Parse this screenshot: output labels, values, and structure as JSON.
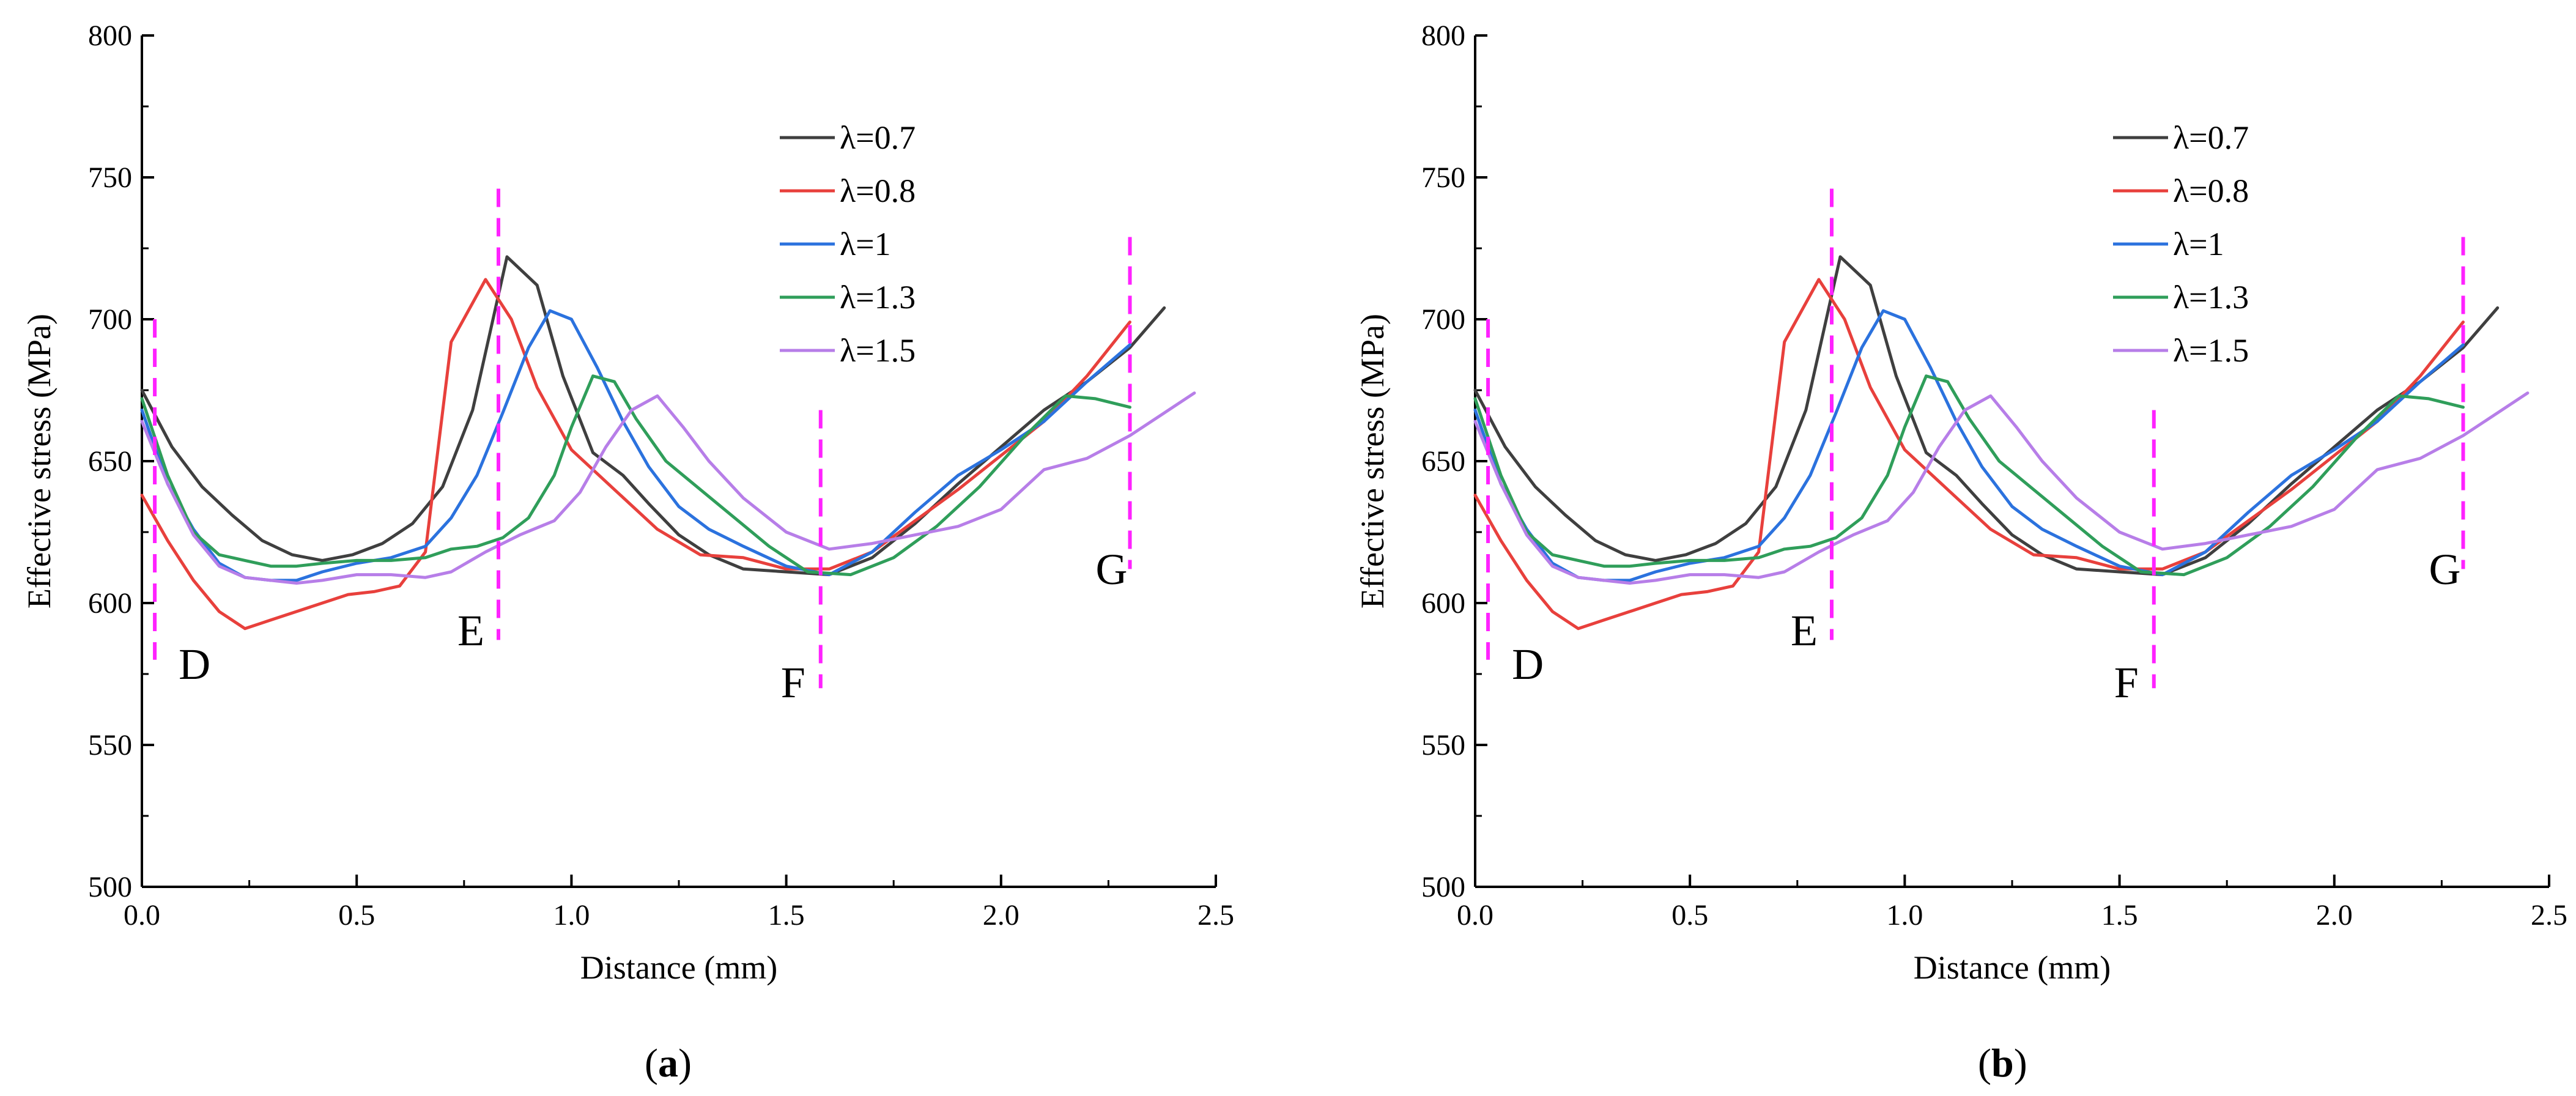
{
  "colors": {
    "lambda_0_7": "#3f3f3f",
    "lambda_0_8": "#e8403c",
    "lambda_1": "#2b72de",
    "lambda_1_3": "#2f9e5a",
    "lambda_1_5": "#b77ee8",
    "marker": "#ff22ff"
  },
  "chart_data": [
    {
      "panel": "(a)",
      "panel_letter": "a",
      "type": "line",
      "xlabel": "Distance (mm)",
      "ylabel": "Effective stress (MPa)",
      "xlim": [
        0.0,
        2.5
      ],
      "ylim": [
        500,
        800
      ],
      "xticks": [
        "0.0",
        "0.5",
        "1.0",
        "1.5",
        "2.0",
        "2.5"
      ],
      "yticks": [
        "500",
        "550",
        "600",
        "650",
        "700",
        "750",
        "800"
      ],
      "legend": "top-right",
      "series": [
        {
          "name": "λ=0.7",
          "color_key": "lambda_0_7",
          "x": [
            0,
            0.07,
            0.14,
            0.21,
            0.28,
            0.35,
            0.42,
            0.49,
            0.56,
            0.63,
            0.7,
            0.77,
            0.85,
            0.92,
            0.98,
            1.05,
            1.12,
            1.18,
            1.25,
            1.32,
            1.4,
            1.5,
            1.6,
            1.7,
            1.8,
            1.9,
            2.0,
            2.1,
            2.2,
            2.3,
            2.38
          ],
          "y": [
            675,
            655,
            641,
            631,
            622,
            617,
            615,
            617,
            621,
            628,
            641,
            668,
            722,
            712,
            680,
            653,
            645,
            635,
            624,
            617,
            612,
            611,
            610,
            616,
            628,
            642,
            655,
            668,
            678,
            690,
            704
          ]
        },
        {
          "name": "λ=0.8",
          "color_key": "lambda_0_8",
          "x": [
            0,
            0.06,
            0.12,
            0.18,
            0.24,
            0.3,
            0.36,
            0.42,
            0.48,
            0.54,
            0.6,
            0.66,
            0.72,
            0.8,
            0.86,
            0.92,
            1.0,
            1.1,
            1.2,
            1.3,
            1.4,
            1.5,
            1.6,
            1.7,
            1.8,
            1.9,
            2.0,
            2.1,
            2.2,
            2.3
          ],
          "y": [
            638,
            622,
            608,
            597,
            591,
            594,
            597,
            600,
            603,
            604,
            606,
            618,
            692,
            714,
            700,
            676,
            654,
            640,
            626,
            617,
            616,
            612,
            612,
            618,
            629,
            640,
            652,
            664,
            680,
            699
          ]
        },
        {
          "name": "λ=1",
          "color_key": "lambda_1",
          "x": [
            0,
            0.06,
            0.12,
            0.18,
            0.24,
            0.3,
            0.36,
            0.42,
            0.5,
            0.58,
            0.66,
            0.72,
            0.78,
            0.84,
            0.9,
            0.95,
            1.0,
            1.06,
            1.12,
            1.18,
            1.25,
            1.32,
            1.4,
            1.5,
            1.6,
            1.7,
            1.8,
            1.9,
            2.0,
            2.1,
            2.2,
            2.3
          ],
          "y": [
            668,
            642,
            626,
            614,
            609,
            608,
            608,
            611,
            614,
            616,
            620,
            630,
            645,
            667,
            690,
            703,
            700,
            683,
            664,
            648,
            634,
            626,
            620,
            613,
            610,
            618,
            632,
            645,
            654,
            664,
            678,
            691
          ]
        },
        {
          "name": "λ=1.3",
          "color_key": "lambda_1_3",
          "x": [
            0,
            0.06,
            0.12,
            0.18,
            0.24,
            0.3,
            0.36,
            0.42,
            0.5,
            0.58,
            0.66,
            0.72,
            0.78,
            0.84,
            0.9,
            0.96,
            1.0,
            1.05,
            1.1,
            1.15,
            1.22,
            1.3,
            1.38,
            1.46,
            1.55,
            1.65,
            1.75,
            1.85,
            1.95,
            2.05,
            2.15,
            2.22,
            2.3
          ],
          "y": [
            672,
            645,
            625,
            617,
            615,
            613,
            613,
            614,
            615,
            615,
            616,
            619,
            620,
            623,
            630,
            645,
            662,
            680,
            678,
            665,
            650,
            640,
            630,
            620,
            611,
            610,
            616,
            627,
            641,
            658,
            673,
            672,
            669
          ]
        },
        {
          "name": "λ=1.5",
          "color_key": "lambda_1_5",
          "x": [
            0,
            0.06,
            0.12,
            0.18,
            0.24,
            0.3,
            0.36,
            0.42,
            0.5,
            0.58,
            0.66,
            0.72,
            0.8,
            0.88,
            0.96,
            1.02,
            1.08,
            1.14,
            1.2,
            1.26,
            1.32,
            1.4,
            1.5,
            1.6,
            1.7,
            1.8,
            1.9,
            2.0,
            2.1,
            2.2,
            2.3,
            2.45
          ],
          "y": [
            664,
            642,
            624,
            613,
            609,
            608,
            607,
            608,
            610,
            610,
            609,
            611,
            618,
            624,
            629,
            639,
            655,
            668,
            673,
            662,
            650,
            637,
            625,
            619,
            621,
            624,
            627,
            633,
            647,
            651,
            659,
            674
          ]
        }
      ],
      "markers": [
        {
          "label": "D",
          "x": 0.03,
          "y_range": [
            580,
            700
          ]
        },
        {
          "label": "E",
          "x": 0.83,
          "y_range": [
            587,
            746
          ]
        },
        {
          "label": "F",
          "x": 1.58,
          "y_range": [
            570,
            668
          ]
        },
        {
          "label": "G",
          "x": 2.3,
          "y_range": [
            612,
            729
          ]
        }
      ]
    },
    {
      "panel": "(b)",
      "panel_letter": "b",
      "type": "line",
      "xlabel": "Distance (mm)",
      "ylabel": "Effective stress (MPa)",
      "xlim": [
        0.0,
        2.5
      ],
      "ylim": [
        500,
        800
      ],
      "xticks": [
        "0.0",
        "0.5",
        "1.0",
        "1.5",
        "2.0",
        "2.5"
      ],
      "yticks": [
        "500",
        "550",
        "600",
        "650",
        "700",
        "750",
        "800"
      ],
      "legend": "top-right",
      "series": [
        {
          "name": "λ=0.7",
          "color_key": "lambda_0_7",
          "x": [
            0,
            0.07,
            0.14,
            0.21,
            0.28,
            0.35,
            0.42,
            0.49,
            0.56,
            0.63,
            0.7,
            0.77,
            0.85,
            0.92,
            0.98,
            1.05,
            1.12,
            1.18,
            1.25,
            1.32,
            1.4,
            1.5,
            1.6,
            1.7,
            1.8,
            1.9,
            2.0,
            2.1,
            2.2,
            2.3,
            2.38
          ],
          "y": [
            675,
            655,
            641,
            631,
            622,
            617,
            615,
            617,
            621,
            628,
            641,
            668,
            722,
            712,
            680,
            653,
            645,
            635,
            624,
            617,
            612,
            611,
            610,
            616,
            628,
            642,
            655,
            668,
            678,
            690,
            704
          ]
        },
        {
          "name": "λ=0.8",
          "color_key": "lambda_0_8",
          "x": [
            0,
            0.06,
            0.12,
            0.18,
            0.24,
            0.3,
            0.36,
            0.42,
            0.48,
            0.54,
            0.6,
            0.66,
            0.72,
            0.8,
            0.86,
            0.92,
            1.0,
            1.1,
            1.2,
            1.3,
            1.4,
            1.5,
            1.6,
            1.7,
            1.8,
            1.9,
            2.0,
            2.1,
            2.2,
            2.3
          ],
          "y": [
            638,
            622,
            608,
            597,
            591,
            594,
            597,
            600,
            603,
            604,
            606,
            618,
            692,
            714,
            700,
            676,
            654,
            640,
            626,
            617,
            616,
            612,
            612,
            618,
            629,
            640,
            652,
            664,
            680,
            699
          ]
        },
        {
          "name": "λ=1",
          "color_key": "lambda_1",
          "x": [
            0,
            0.06,
            0.12,
            0.18,
            0.24,
            0.3,
            0.36,
            0.42,
            0.5,
            0.58,
            0.66,
            0.72,
            0.78,
            0.84,
            0.9,
            0.95,
            1.0,
            1.06,
            1.12,
            1.18,
            1.25,
            1.32,
            1.4,
            1.5,
            1.6,
            1.7,
            1.8,
            1.9,
            2.0,
            2.1,
            2.2,
            2.3
          ],
          "y": [
            668,
            642,
            626,
            614,
            609,
            608,
            608,
            611,
            614,
            616,
            620,
            630,
            645,
            667,
            690,
            703,
            700,
            683,
            664,
            648,
            634,
            626,
            620,
            613,
            610,
            618,
            632,
            645,
            654,
            664,
            678,
            691
          ]
        },
        {
          "name": "λ=1.3",
          "color_key": "lambda_1_3",
          "x": [
            0,
            0.06,
            0.12,
            0.18,
            0.24,
            0.3,
            0.36,
            0.42,
            0.5,
            0.58,
            0.66,
            0.72,
            0.78,
            0.84,
            0.9,
            0.96,
            1.0,
            1.05,
            1.1,
            1.15,
            1.22,
            1.3,
            1.38,
            1.46,
            1.55,
            1.65,
            1.75,
            1.85,
            1.95,
            2.05,
            2.15,
            2.22,
            2.3
          ],
          "y": [
            672,
            645,
            625,
            617,
            615,
            613,
            613,
            614,
            615,
            615,
            616,
            619,
            620,
            623,
            630,
            645,
            662,
            680,
            678,
            665,
            650,
            640,
            630,
            620,
            611,
            610,
            616,
            627,
            641,
            658,
            673,
            672,
            669
          ]
        },
        {
          "name": "λ=1.5",
          "color_key": "lambda_1_5",
          "x": [
            0,
            0.06,
            0.12,
            0.18,
            0.24,
            0.3,
            0.36,
            0.42,
            0.5,
            0.58,
            0.66,
            0.72,
            0.8,
            0.88,
            0.96,
            1.02,
            1.08,
            1.14,
            1.2,
            1.26,
            1.32,
            1.4,
            1.5,
            1.6,
            1.7,
            1.8,
            1.9,
            2.0,
            2.1,
            2.2,
            2.3,
            2.45
          ],
          "y": [
            664,
            642,
            624,
            613,
            609,
            608,
            607,
            608,
            610,
            610,
            609,
            611,
            618,
            624,
            629,
            639,
            655,
            668,
            673,
            662,
            650,
            637,
            625,
            619,
            621,
            624,
            627,
            633,
            647,
            651,
            659,
            674
          ]
        }
      ],
      "markers": [
        {
          "label": "D",
          "x": 0.03,
          "y_range": [
            580,
            700
          ]
        },
        {
          "label": "E",
          "x": 0.83,
          "y_range": [
            587,
            746
          ]
        },
        {
          "label": "F",
          "x": 1.58,
          "y_range": [
            570,
            668
          ]
        },
        {
          "label": "G",
          "x": 2.3,
          "y_range": [
            612,
            729
          ]
        }
      ]
    }
  ]
}
